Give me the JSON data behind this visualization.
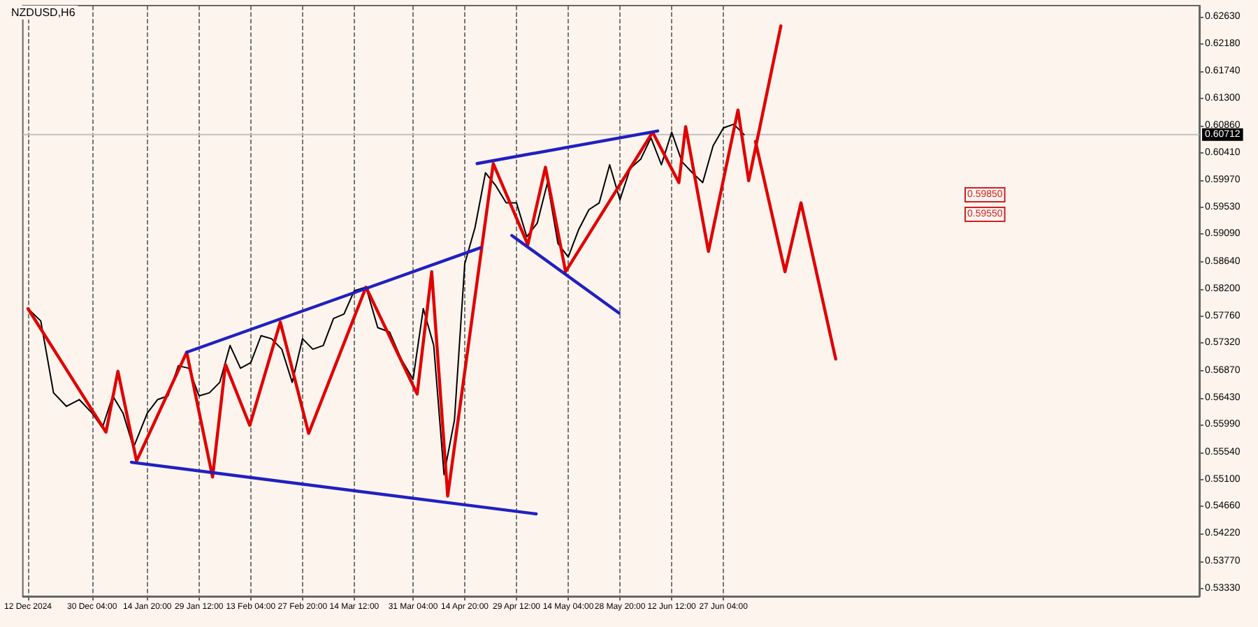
{
  "chart_data": {
    "type": "line",
    "title": "NZDUSD,H6",
    "xlim": [
      "2024-12-10T13:00",
      "2025-11-09T02:00"
    ],
    "xticks": [
      {
        "value": "2024-12-12T00:00",
        "label": "12 Dec 2024"
      },
      {
        "value": "2024-12-30T04:00",
        "label": "30 Dec 04:00"
      },
      {
        "value": "2025-01-14T20:00",
        "label": "14 Jan 20:00"
      },
      {
        "value": "2025-01-29T12:00",
        "label": "29 Jan 12:00"
      },
      {
        "value": "2025-02-13T04:00",
        "label": "13 Feb 04:00"
      },
      {
        "value": "2025-02-27T20:00",
        "label": "27 Feb 20:00"
      },
      {
        "value": "2025-03-14T12:00",
        "label": "14 Mar 12:00"
      },
      {
        "value": "2025-03-31T04:00",
        "label": "31 Mar 04:00"
      },
      {
        "value": "2025-04-14T20:00",
        "label": "14 Apr 20:00"
      },
      {
        "value": "2025-04-29T12:00",
        "label": "29 Apr 12:00"
      },
      {
        "value": "2025-05-14T04:00",
        "label": "14 May 04:00"
      },
      {
        "value": "2025-05-28T20:00",
        "label": "28 May 20:00"
      },
      {
        "value": "2025-06-12T12:00",
        "label": "12 Jun 12:00"
      },
      {
        "value": "2025-06-27T04:00",
        "label": "27 Jun 04:00"
      }
    ],
    "ylim": [
      0.532,
      0.6281
    ],
    "yticks": [
      {
        "value": 0.5333,
        "label": "0.53330"
      },
      {
        "value": 0.5377,
        "label": "0.53770"
      },
      {
        "value": 0.5422,
        "label": "0.54220"
      },
      {
        "value": 0.5466,
        "label": "0.54660"
      },
      {
        "value": 0.551,
        "label": "0.55100"
      },
      {
        "value": 0.5554,
        "label": "0.55540"
      },
      {
        "value": 0.5599,
        "label": "0.55990"
      },
      {
        "value": 0.5643,
        "label": "0.56430"
      },
      {
        "value": 0.5687,
        "label": "0.56870"
      },
      {
        "value": 0.5732,
        "label": "0.57320"
      },
      {
        "value": 0.5776,
        "label": "0.57760"
      },
      {
        "value": 0.582,
        "label": "0.58200"
      },
      {
        "value": 0.5864,
        "label": "0.58640"
      },
      {
        "value": 0.5909,
        "label": "0.59090"
      },
      {
        "value": 0.5953,
        "label": "0.59530"
      },
      {
        "value": 0.5997,
        "label": "0.59970"
      },
      {
        "value": 0.6041,
        "label": "0.60410"
      },
      {
        "value": 0.6086,
        "label": "0.60860"
      },
      {
        "value": 0.613,
        "label": "0.61300"
      },
      {
        "value": 0.6174,
        "label": "0.61740"
      },
      {
        "value": 0.6218,
        "label": "0.62180"
      },
      {
        "value": 0.6263,
        "label": "0.62630"
      }
    ],
    "grid": "x",
    "marker": "none",
    "line_style": "solid",
    "series": [
      {
        "color": "#000000",
        "x": [
          "2024-12-12T00:00",
          "2024-12-15T15:00",
          "2024-12-19T06:00",
          "2024-12-22T22:00",
          "2024-12-26T13:00",
          "2024-12-30T04:00",
          "2025-01-02T02:00",
          "2025-01-05T01:00",
          "2025-01-07T23:00",
          "2025-01-10T22:00",
          "2025-01-14T20:00",
          "2025-01-17T18:00",
          "2025-01-20T17:00",
          "2025-01-23T15:00",
          "2025-01-26T14:00",
          "2025-01-29T12:00",
          "2025-02-01T10:00",
          "2025-02-04T09:00",
          "2025-02-07T07:00",
          "2025-02-10T06:00",
          "2025-02-13T04:00",
          "2025-02-16T02:00",
          "2025-02-19T01:00",
          "2025-02-21T23:00",
          "2025-02-24T22:00",
          "2025-02-27T20:00",
          "2025-03-02T18:00",
          "2025-03-05T17:00",
          "2025-03-08T15:00",
          "2025-03-11T14:00",
          "2025-03-14T12:00",
          "2025-03-17T20:00",
          "2025-03-21T04:00",
          "2025-03-24T12:00",
          "2025-03-27T20:00",
          "2025-03-31T04:00",
          "2025-04-03T02:00",
          "2025-04-06T01:00",
          "2025-04-08T23:00",
          "2025-04-11T22:00",
          "2025-04-14T20:00",
          "2025-04-17T18:00",
          "2025-04-20T17:00",
          "2025-04-23T15:00",
          "2025-04-26T14:00",
          "2025-04-29T12:00",
          "2025-05-02T10:00",
          "2025-05-05T09:00",
          "2025-05-08T07:00",
          "2025-05-11T06:00",
          "2025-05-14T04:00",
          "2025-05-17T02:00",
          "2025-05-20T01:00",
          "2025-05-22T23:00",
          "2025-05-25T22:00",
          "2025-05-28T20:00",
          "2025-05-31T18:00",
          "2025-06-03T17:00",
          "2025-06-06T15:00",
          "2025-06-09T14:00",
          "2025-06-12T12:00",
          "2025-06-15T10:00",
          "2025-06-18T09:00",
          "2025-06-21T07:00",
          "2025-06-24T06:00",
          "2025-06-27T04:00",
          "2025-06-30T02:00",
          "2025-07-03T01:00"
        ],
        "values": [
          0.5788,
          0.5768,
          0.5651,
          0.5629,
          0.564,
          0.5618,
          0.5594,
          0.5646,
          0.5618,
          0.5562,
          0.5618,
          0.564,
          0.5646,
          0.5695,
          0.5691,
          0.5646,
          0.5651,
          0.5668,
          0.5728,
          0.5691,
          0.57,
          0.5744,
          0.5739,
          0.5722,
          0.5668,
          0.5739,
          0.5722,
          0.5728,
          0.5772,
          0.5779,
          0.5817,
          0.5823,
          0.5757,
          0.575,
          0.5706,
          0.5673,
          0.5788,
          0.5728,
          0.5518,
          0.5607,
          0.5861,
          0.592,
          0.6009,
          0.5988,
          0.596,
          0.596,
          0.5905,
          0.5927,
          0.5993,
          0.5894,
          0.5872,
          0.5916,
          0.5949,
          0.596,
          0.6022,
          0.5965,
          0.6016,
          0.6031,
          0.6066,
          0.6022,
          0.6075,
          0.6027,
          0.6009,
          0.5993,
          0.6053,
          0.6082,
          0.6088,
          0.6071
        ]
      },
      {
        "color": "#e00000",
        "x": [
          "2024-12-12T00:00",
          "2025-01-03T03:00",
          "2025-01-06T12:00",
          "2025-01-11T19:00",
          "2025-01-26T00:00",
          "2025-02-02T08:00",
          "2025-02-06T00:00",
          "2025-02-12T21:00",
          "2025-02-21T13:00",
          "2025-03-01T14:00",
          "2025-03-17T20:00",
          "2025-04-01T08:00",
          "2025-04-05T11:00",
          "2025-04-10T00:00",
          "2025-04-22T22:00",
          "2025-05-02T17:00",
          "2025-05-07T17:00",
          "2025-05-13T10:00",
          "2025-06-07T02:00",
          "2025-06-14T13:00",
          "2025-06-16T11:00",
          "2025-06-22T22:00",
          "2025-07-01T07:00",
          "2025-07-04T08:00",
          "2025-07-13T11:00"
        ],
        "values": [
          0.5788,
          0.5587,
          0.5686,
          0.554,
          0.5717,
          0.5514,
          0.5697,
          0.5598,
          0.5766,
          0.5585,
          0.5823,
          0.5649,
          0.5848,
          0.5483,
          0.6024,
          0.5892,
          0.6018,
          0.5848,
          0.6075,
          0.5993,
          0.6084,
          0.5881,
          0.6111,
          0.5996,
          0.6248
        ]
      },
      {
        "color": "#e00000",
        "x": [
          "2025-07-06T06:00",
          "2025-07-14T15:00",
          "2025-07-19T04:00",
          "2025-07-29T00:00"
        ],
        "values": [
          0.606,
          0.5848,
          0.596,
          0.5706
        ]
      },
      {
        "color": "#2020c0",
        "x": [
          "2025-01-26T00:00",
          "2025-04-19T06:00"
        ],
        "values": [
          0.5717,
          0.5887
        ]
      },
      {
        "color": "#2020c0",
        "x": [
          "2025-01-10T08:00",
          "2025-05-05T02:00"
        ],
        "values": [
          0.5538,
          0.5454
        ]
      },
      {
        "color": "#2020c0",
        "x": [
          "2025-04-18T08:00",
          "2025-06-08T13:00"
        ],
        "values": [
          0.6024,
          0.6077
        ]
      },
      {
        "color": "#2020c0",
        "x": [
          "2025-04-28T04:00",
          "2025-05-28T13:00"
        ],
        "values": [
          0.5907,
          0.5781
        ]
      }
    ],
    "ref_lines": [
      {
        "axis": "y",
        "value": 0.60712,
        "label": "0.60712",
        "color": "#c0c0c0"
      }
    ],
    "annotations": [
      "0.59850",
      "0.59550"
    ]
  }
}
